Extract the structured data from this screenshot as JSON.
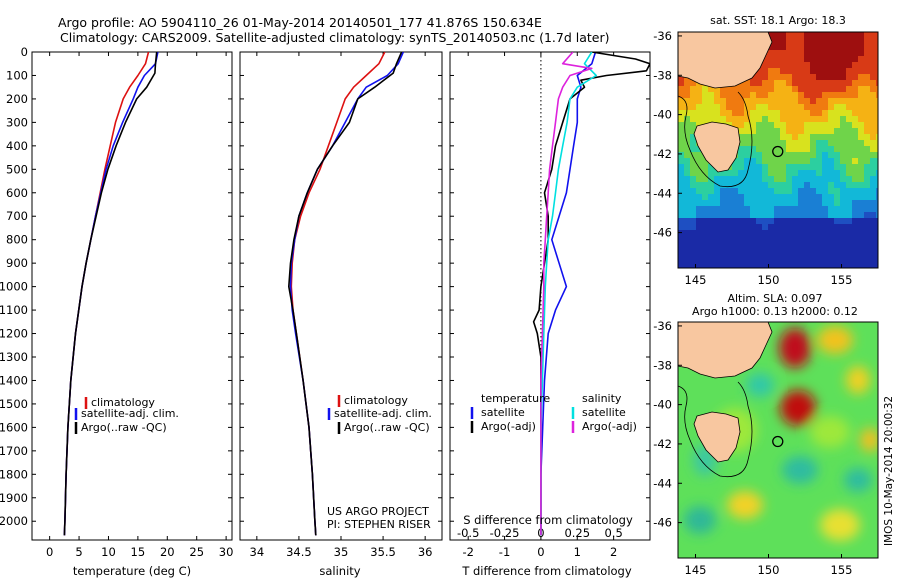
{
  "header": {
    "line1": "Argo profile: AO 5904110_26 01-May-2014 20140501_177 41.876S 150.634E",
    "line2": "Climatology: CARS2009. Satellite-adjusted climatology: synTS_20140503.nc (1.7d later)"
  },
  "side_stamp": "IMOS 10-May-2014 20:00:32",
  "colors": {
    "climatology": "#dd1111",
    "satellite": "#1111ee",
    "argo": "#000000",
    "salinity_sat": "#00e0e0",
    "salinity_argo": "#dd22dd",
    "land": "#f8c7a0"
  },
  "chart_data": [
    {
      "type": "line",
      "xlabel": "temperature (deg C)",
      "ylabel": "",
      "xlim": [
        -3,
        31
      ],
      "ylim": [
        2080,
        0
      ],
      "xticks": [
        "0",
        "5",
        "10",
        "15",
        "20",
        "25",
        "30"
      ],
      "xtick_values": [
        0,
        5,
        10,
        15,
        20,
        25,
        30
      ],
      "yticks": [
        "0",
        "100",
        "200",
        "300",
        "400",
        "500",
        "600",
        "700",
        "800",
        "900",
        "1000",
        "1100",
        "1200",
        "1300",
        "1400",
        "1500",
        "1600",
        "1700",
        "1800",
        "1900",
        "2000"
      ],
      "ytick_values": [
        0,
        100,
        200,
        300,
        400,
        500,
        600,
        700,
        800,
        900,
        1000,
        1100,
        1200,
        1300,
        1400,
        1500,
        1600,
        1700,
        1800,
        1900,
        2000
      ],
      "legend": [
        "climatology",
        "satellite-adj. clim.",
        "Argo(..raw -QC)"
      ],
      "series": [
        {
          "name": "climatology",
          "color": "#dd1111",
          "depth": [
            0,
            50,
            100,
            150,
            200,
            300,
            400,
            500,
            600,
            700,
            800,
            900,
            1000,
            1200,
            1400,
            1600,
            1800,
            2000,
            2060
          ],
          "values": [
            16.8,
            16.3,
            15.0,
            13.6,
            12.5,
            11.2,
            10.3,
            9.4,
            8.6,
            7.8,
            7.0,
            6.2,
            5.5,
            4.4,
            3.6,
            3.1,
            2.8,
            2.6,
            2.5
          ]
        },
        {
          "name": "satellite-adj. clim.",
          "color": "#1111ee",
          "depth": [
            0,
            50,
            100,
            150,
            200,
            300,
            400,
            500,
            600,
            700,
            800,
            900,
            1000,
            1200,
            1400,
            1600,
            1800,
            2000,
            2060
          ],
          "values": [
            18.4,
            18.0,
            16.1,
            15.0,
            14.2,
            12.4,
            10.8,
            9.6,
            8.7,
            7.8,
            7.0,
            6.2,
            5.5,
            4.4,
            3.6,
            3.1,
            2.8,
            2.6,
            2.5
          ]
        },
        {
          "name": "Argo(..raw -QC)",
          "color": "#000000",
          "depth": [
            0,
            50,
            90,
            150,
            200,
            300,
            400,
            500,
            600,
            700,
            800,
            900,
            1000,
            1200,
            1400,
            1600,
            1800,
            2000,
            2060
          ],
          "values": [
            18.2,
            18.0,
            17.9,
            16.5,
            14.8,
            12.9,
            11.3,
            9.9,
            8.8,
            7.9,
            7.0,
            6.2,
            5.5,
            4.4,
            3.6,
            3.1,
            2.8,
            2.6,
            2.5
          ]
        }
      ]
    },
    {
      "type": "line",
      "xlabel": "salinity",
      "xlim": [
        33.8,
        36.2
      ],
      "ylim": [
        2080,
        0
      ],
      "xticks": [
        "34",
        "34.5",
        "35",
        "35.5",
        "36"
      ],
      "xtick_values": [
        34,
        34.5,
        35,
        35.5,
        36
      ],
      "legend": [
        "climatology",
        "satellite-adj. clim.",
        "Argo(..raw -QC)"
      ],
      "annotation": [
        "US ARGO PROJECT",
        "PI: STEPHEN RISER"
      ],
      "series": [
        {
          "name": "climatology",
          "color": "#dd1111",
          "depth": [
            0,
            50,
            100,
            150,
            200,
            300,
            400,
            500,
            600,
            700,
            800,
            900,
            1000,
            1100,
            1200,
            1400,
            1600,
            1800,
            2000,
            2060
          ],
          "values": [
            35.52,
            35.45,
            35.3,
            35.15,
            35.05,
            34.95,
            34.85,
            34.75,
            34.62,
            34.52,
            34.45,
            34.42,
            34.41,
            34.43,
            34.47,
            34.55,
            34.62,
            34.66,
            34.69,
            34.7
          ]
        },
        {
          "name": "satellite-adj. clim.",
          "color": "#1111ee",
          "depth": [
            0,
            50,
            100,
            150,
            200,
            300,
            400,
            500,
            600,
            700,
            800,
            900,
            1000,
            1100,
            1200,
            1400,
            1600,
            1800,
            2000,
            2060
          ],
          "values": [
            35.74,
            35.68,
            35.55,
            35.3,
            35.2,
            35.05,
            34.9,
            34.72,
            34.6,
            34.5,
            34.45,
            34.41,
            34.4,
            34.42,
            34.46,
            34.55,
            34.62,
            34.66,
            34.69,
            34.7
          ]
        },
        {
          "name": "Argo(..raw -QC)",
          "color": "#000000",
          "depth": [
            0,
            50,
            90,
            150,
            200,
            300,
            400,
            500,
            600,
            700,
            800,
            900,
            1000,
            1100,
            1200,
            1400,
            1600,
            1800,
            2000,
            2060
          ],
          "values": [
            35.72,
            35.66,
            35.62,
            35.4,
            35.2,
            35.1,
            34.9,
            34.72,
            34.6,
            34.5,
            34.44,
            34.4,
            34.38,
            34.43,
            34.47,
            34.55,
            34.62,
            34.66,
            34.69,
            34.7
          ]
        }
      ]
    },
    {
      "type": "line",
      "xlabel": "T difference from climatology",
      "xlabel2": "S difference from climatology",
      "xlim": [
        -2.5,
        3.0
      ],
      "ylim": [
        2080,
        0
      ],
      "xticks": [
        "-2",
        "-1",
        "0",
        "1",
        "2"
      ],
      "xtick_values": [
        -2,
        -1,
        0,
        1,
        2
      ],
      "xticks_s": [
        "-0.5",
        "-0.25",
        "0",
        "0.25",
        "0.5"
      ],
      "xtick_s_values": [
        -0.5,
        -0.25,
        0,
        0.25,
        0.5
      ],
      "legend_temperature_title": "temperature",
      "legend_salinity_title": "salinity",
      "legend": [
        "satellite",
        "Argo(-adj)",
        "satellite",
        "Argo(-adj)"
      ],
      "series": [
        {
          "name": "satellite",
          "color": "#1111ee",
          "depth": [
            0,
            50,
            100,
            150,
            200,
            300,
            400,
            500,
            600,
            700,
            800,
            900,
            1000,
            1100,
            1200,
            1400,
            1600,
            1800,
            2000,
            2060
          ],
          "values": [
            1.5,
            1.4,
            1.0,
            1.1,
            1.0,
            1.0,
            0.9,
            0.8,
            0.7,
            0.5,
            0.3,
            0.5,
            0.7,
            0.4,
            0.2,
            0.1,
            0.05,
            0.0,
            0.0,
            0.0
          ]
        },
        {
          "name": "Argo(-adj)",
          "color": "#000000",
          "depth": [
            0,
            15,
            30,
            50,
            80,
            100,
            120,
            150,
            200,
            300,
            400,
            500,
            600,
            700,
            800,
            900,
            1000,
            1100,
            1150,
            1200,
            1300,
            1400,
            1600,
            1800,
            2000,
            2060
          ],
          "values": [
            1.4,
            2.0,
            2.6,
            3.0,
            2.9,
            1.8,
            1.1,
            1.2,
            0.8,
            0.6,
            0.4,
            0.3,
            0.1,
            0.2,
            0.2,
            0.1,
            0.0,
            -0.05,
            -0.2,
            -0.1,
            0.0,
            0.0,
            0.0,
            0.0,
            0.0,
            0.0
          ]
        },
        {
          "name": "satellite",
          "color": "#00e0e0",
          "depth": [
            0,
            50,
            100,
            150,
            200,
            300,
            400,
            500,
            600,
            700,
            800,
            900,
            1000,
            1200,
            1400,
            1600,
            1800,
            2000,
            2060
          ],
          "values": [
            0.35,
            0.3,
            0.38,
            0.25,
            0.2,
            0.18,
            0.15,
            0.12,
            0.1,
            0.08,
            0.05,
            0.04,
            0.03,
            0.02,
            0.01,
            0.0,
            0.0,
            0.0,
            0.0
          ]
        },
        {
          "name": "Argo(-adj)",
          "color": "#dd22dd",
          "depth": [
            0,
            50,
            70,
            100,
            150,
            200,
            300,
            400,
            500,
            600,
            700,
            800,
            900,
            1000,
            1200,
            1400,
            1600,
            1800,
            2000,
            2060
          ],
          "values": [
            0.22,
            0.15,
            0.35,
            0.2,
            0.15,
            0.12,
            0.1,
            0.08,
            0.06,
            0.05,
            0.04,
            0.03,
            0.02,
            0.02,
            0.01,
            0.0,
            0.0,
            0.0,
            0.0,
            0.0
          ]
        }
      ]
    },
    {
      "type": "heatmap",
      "title": "sat. SST: 18.1 Argo: 18.3",
      "xlim": [
        143.8,
        157.5
      ],
      "ylim": [
        -47.8,
        -35.8
      ],
      "xticks": [
        "145",
        "150",
        "155"
      ],
      "xtick_values": [
        145,
        150,
        155
      ],
      "yticks": [
        "-36",
        "-38",
        "-40",
        "-42",
        "-44",
        "-46"
      ],
      "ytick_values": [
        -36,
        -38,
        -40,
        -42,
        -44,
        -46
      ],
      "marker": {
        "lon": 150.634,
        "lat": -41.876
      }
    },
    {
      "type": "heatmap",
      "title": "Altim. SLA: 0.097",
      "subtitle": "Argo h1000: 0.13 h2000: 0.12",
      "xlim": [
        143.8,
        157.5
      ],
      "ylim": [
        -47.8,
        -35.8
      ],
      "xticks": [
        "145",
        "150",
        "155"
      ],
      "xtick_values": [
        145,
        150,
        155
      ],
      "yticks": [
        "-36",
        "-38",
        "-40",
        "-42",
        "-44",
        "-46"
      ],
      "ytick_values": [
        -36,
        -38,
        -40,
        -42,
        -44,
        -46
      ],
      "marker": {
        "lon": 150.634,
        "lat": -41.876
      }
    }
  ]
}
